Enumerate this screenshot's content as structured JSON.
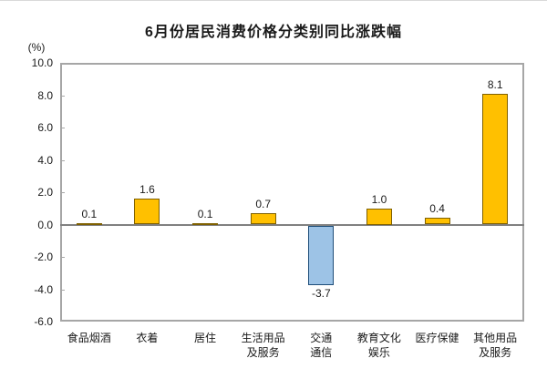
{
  "chart_data": {
    "type": "bar",
    "title": "6月份居民消费价格分类别同比涨跌幅",
    "unit_label": "(%)",
    "categories": [
      "食品烟酒",
      "衣着",
      "居住",
      "生活用品\n及服务",
      "交通\n通信",
      "教育文化\n娱乐",
      "医疗保健",
      "其他用品\n及服务"
    ],
    "values": [
      0.1,
      1.6,
      0.1,
      0.7,
      -3.7,
      1.0,
      0.4,
      8.1
    ],
    "value_labels": [
      "0.1",
      "1.6",
      "0.1",
      "0.7",
      "-3.7",
      "1.0",
      "0.4",
      "8.1"
    ],
    "ylim": [
      -6.0,
      10.0
    ],
    "ytick_step": 2.0,
    "ytick_labels": [
      "10.0",
      "8.0",
      "6.0",
      "4.0",
      "2.0",
      "0.0",
      "-2.0",
      "-4.0",
      "-6.0"
    ],
    "xlabel": "",
    "ylabel": "(%)",
    "grid": false,
    "legend": "none",
    "colors": {
      "positive_fill": "#FFC000",
      "positive_border": "#7F6000",
      "negative_fill": "#9DC3E6",
      "negative_border": "#1F4E79",
      "zero_axis_line": "#808080",
      "plot_border": "#A6A6A6",
      "text": "#1A1A1A"
    }
  }
}
